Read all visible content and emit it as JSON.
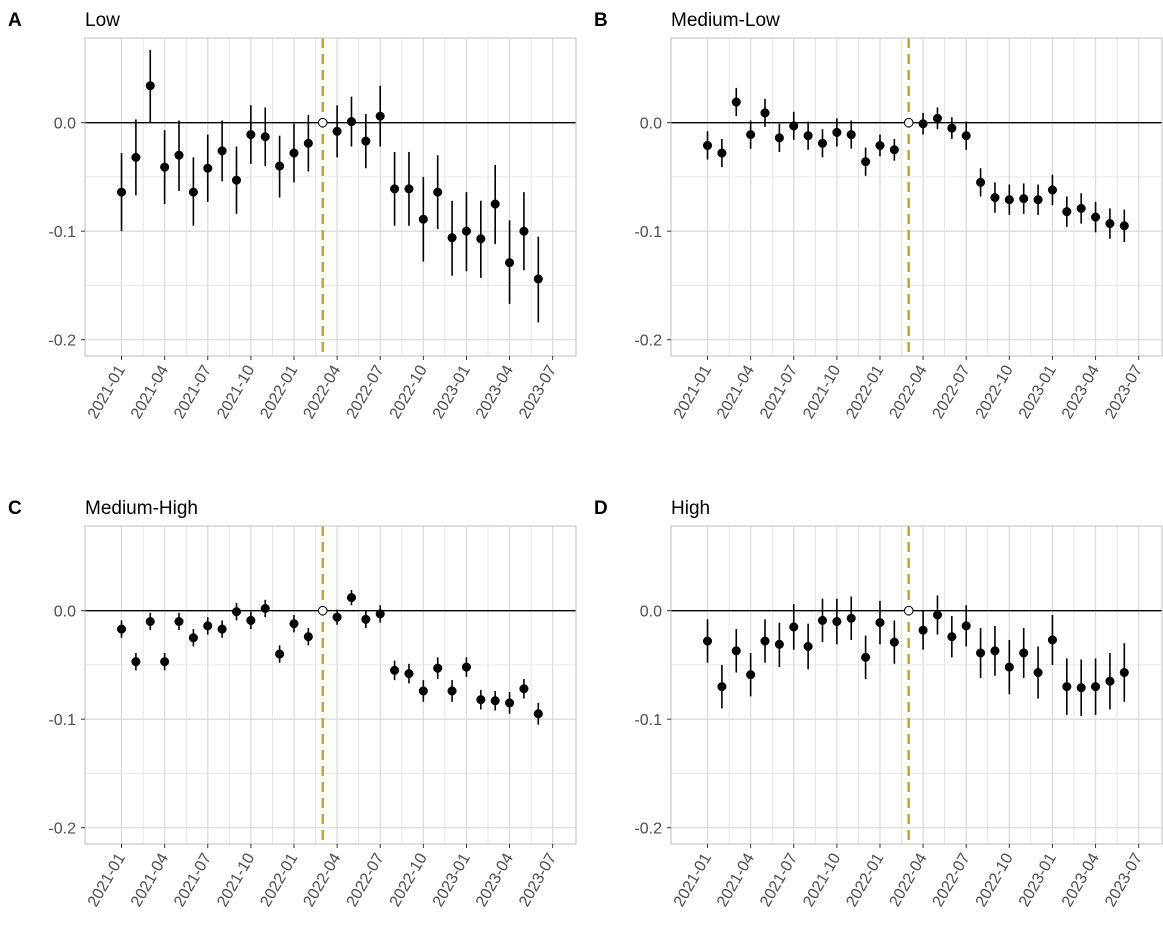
{
  "figure": {
    "event_month": "2022-03",
    "event_line_color": "#c9a82b",
    "point_color": "#000000",
    "grid_color": "#dcdcdc",
    "panel_border_color": "#bfbfbf"
  },
  "chart_data": [
    {
      "type": "scatter",
      "panel_letter": "A",
      "title": "Low",
      "ylim": [
        -0.215,
        0.078
      ],
      "yticks": [
        0.0,
        -0.1,
        -0.2
      ],
      "ytick_labels": [
        "0.0",
        "-0.1",
        "-0.2"
      ],
      "xticks": [
        "2021-01",
        "2021-04",
        "2021-07",
        "2021-10",
        "2022-01",
        "2022-04",
        "2022-07",
        "2022-10",
        "2023-01",
        "2023-04",
        "2023-07"
      ],
      "xlim": [
        "2020-10-15",
        "2023-08-20"
      ],
      "hline": 0.0,
      "grid": true,
      "x": [
        "2021-01",
        "2021-02",
        "2021-03",
        "2021-04",
        "2021-05",
        "2021-06",
        "2021-07",
        "2021-08",
        "2021-09",
        "2021-10",
        "2021-11",
        "2021-12",
        "2022-01",
        "2022-02",
        "2022-03",
        "2022-04",
        "2022-05",
        "2022-06",
        "2022-07",
        "2022-08",
        "2022-09",
        "2022-10",
        "2022-11",
        "2022-12",
        "2023-01",
        "2023-02",
        "2023-03",
        "2023-04",
        "2023-05",
        "2023-06"
      ],
      "y": [
        -0.064,
        -0.032,
        0.034,
        -0.041,
        -0.03,
        -0.064,
        -0.042,
        -0.026,
        -0.053,
        -0.011,
        -0.013,
        -0.04,
        -0.028,
        -0.019,
        0.0,
        -0.008,
        0.001,
        -0.017,
        0.006,
        -0.061,
        -0.061,
        -0.089,
        -0.064,
        -0.106,
        -0.1,
        -0.107,
        -0.075,
        -0.129,
        -0.1,
        -0.144
      ],
      "lower": [
        -0.1,
        -0.067,
        0.0,
        -0.075,
        -0.063,
        -0.095,
        -0.073,
        -0.054,
        -0.084,
        -0.038,
        -0.04,
        -0.069,
        -0.055,
        -0.045,
        0.0,
        -0.032,
        -0.022,
        -0.042,
        -0.022,
        -0.095,
        -0.095,
        -0.128,
        -0.098,
        -0.141,
        -0.137,
        -0.143,
        -0.112,
        -0.167,
        -0.136,
        -0.184
      ],
      "upper": [
        -0.028,
        0.003,
        0.067,
        -0.007,
        0.002,
        -0.032,
        -0.011,
        0.002,
        -0.022,
        0.016,
        0.014,
        -0.012,
        -0.001,
        0.007,
        0.0,
        0.016,
        0.024,
        0.008,
        0.034,
        -0.027,
        -0.027,
        -0.05,
        -0.03,
        -0.072,
        -0.064,
        -0.072,
        -0.039,
        -0.09,
        -0.064,
        -0.105
      ]
    },
    {
      "type": "scatter",
      "panel_letter": "B",
      "title": "Medium-Low",
      "ylim": [
        -0.215,
        0.078
      ],
      "yticks": [
        0.0,
        -0.1,
        -0.2
      ],
      "ytick_labels": [
        "0.0",
        "-0.1",
        "-0.2"
      ],
      "xticks": [
        "2021-01",
        "2021-04",
        "2021-07",
        "2021-10",
        "2022-01",
        "2022-04",
        "2022-07",
        "2022-10",
        "2023-01",
        "2023-04",
        "2023-07"
      ],
      "xlim": [
        "2020-10-15",
        "2023-08-20"
      ],
      "hline": 0.0,
      "grid": true,
      "x": [
        "2021-01",
        "2021-02",
        "2021-03",
        "2021-04",
        "2021-05",
        "2021-06",
        "2021-07",
        "2021-08",
        "2021-09",
        "2021-10",
        "2021-11",
        "2021-12",
        "2022-01",
        "2022-02",
        "2022-03",
        "2022-04",
        "2022-05",
        "2022-06",
        "2022-07",
        "2022-08",
        "2022-09",
        "2022-10",
        "2022-11",
        "2022-12",
        "2023-01",
        "2023-02",
        "2023-03",
        "2023-04",
        "2023-05",
        "2023-06"
      ],
      "y": [
        -0.021,
        -0.028,
        0.019,
        -0.011,
        0.009,
        -0.014,
        -0.003,
        -0.012,
        -0.019,
        -0.009,
        -0.011,
        -0.036,
        -0.021,
        -0.025,
        0.0,
        -0.001,
        0.004,
        -0.005,
        -0.012,
        -0.055,
        -0.069,
        -0.071,
        -0.07,
        -0.071,
        -0.062,
        -0.082,
        -0.079,
        -0.087,
        -0.093,
        -0.095
      ],
      "lower": [
        -0.034,
        -0.041,
        0.006,
        -0.024,
        -0.004,
        -0.027,
        -0.016,
        -0.025,
        -0.032,
        -0.022,
        -0.024,
        -0.049,
        -0.031,
        -0.035,
        0.0,
        -0.011,
        -0.006,
        -0.015,
        -0.025,
        -0.068,
        -0.083,
        -0.085,
        -0.084,
        -0.085,
        -0.076,
        -0.096,
        -0.093,
        -0.101,
        -0.107,
        -0.11
      ],
      "upper": [
        -0.008,
        -0.015,
        0.032,
        0.002,
        0.022,
        -0.001,
        0.01,
        0.001,
        -0.006,
        0.004,
        0.002,
        -0.023,
        -0.011,
        -0.015,
        0.0,
        0.009,
        0.014,
        0.005,
        0.001,
        -0.042,
        -0.055,
        -0.057,
        -0.056,
        -0.057,
        -0.048,
        -0.068,
        -0.065,
        -0.073,
        -0.079,
        -0.08
      ]
    },
    {
      "type": "scatter",
      "panel_letter": "C",
      "title": "Medium-High",
      "ylim": [
        -0.215,
        0.078
      ],
      "yticks": [
        0.0,
        -0.1,
        -0.2
      ],
      "ytick_labels": [
        "0.0",
        "-0.1",
        "-0.2"
      ],
      "xticks": [
        "2021-01",
        "2021-04",
        "2021-07",
        "2021-10",
        "2022-01",
        "2022-04",
        "2022-07",
        "2022-10",
        "2023-01",
        "2023-04",
        "2023-07"
      ],
      "xlim": [
        "2020-10-15",
        "2023-08-20"
      ],
      "hline": 0.0,
      "grid": true,
      "x": [
        "2021-01",
        "2021-02",
        "2021-03",
        "2021-04",
        "2021-05",
        "2021-06",
        "2021-07",
        "2021-08",
        "2021-09",
        "2021-10",
        "2021-11",
        "2021-12",
        "2022-01",
        "2022-02",
        "2022-03",
        "2022-04",
        "2022-05",
        "2022-06",
        "2022-07",
        "2022-08",
        "2022-09",
        "2022-10",
        "2022-11",
        "2022-12",
        "2023-01",
        "2023-02",
        "2023-03",
        "2023-04",
        "2023-05",
        "2023-06"
      ],
      "y": [
        -0.017,
        -0.047,
        -0.01,
        -0.047,
        -0.01,
        -0.025,
        -0.014,
        -0.017,
        -0.001,
        -0.009,
        0.002,
        -0.04,
        -0.012,
        -0.024,
        0.0,
        -0.006,
        0.012,
        -0.008,
        -0.003,
        -0.055,
        -0.058,
        -0.074,
        -0.053,
        -0.074,
        -0.052,
        -0.082,
        -0.083,
        -0.085,
        -0.072,
        -0.095
      ],
      "lower": [
        -0.025,
        -0.055,
        -0.018,
        -0.055,
        -0.018,
        -0.033,
        -0.022,
        -0.025,
        -0.009,
        -0.017,
        -0.006,
        -0.048,
        -0.02,
        -0.032,
        0.0,
        -0.013,
        0.005,
        -0.016,
        -0.011,
        -0.064,
        -0.067,
        -0.084,
        -0.063,
        -0.084,
        -0.061,
        -0.091,
        -0.092,
        -0.095,
        -0.081,
        -0.105
      ],
      "upper": [
        -0.009,
        -0.039,
        -0.002,
        -0.039,
        -0.002,
        -0.017,
        -0.006,
        -0.009,
        0.007,
        -0.001,
        0.01,
        -0.032,
        -0.004,
        -0.016,
        0.0,
        0.001,
        0.019,
        0.0,
        0.005,
        -0.046,
        -0.049,
        -0.064,
        -0.043,
        -0.064,
        -0.043,
        -0.073,
        -0.074,
        -0.075,
        -0.063,
        -0.085
      ]
    },
    {
      "type": "scatter",
      "panel_letter": "D",
      "title": "High",
      "ylim": [
        -0.215,
        0.078
      ],
      "yticks": [
        0.0,
        -0.1,
        -0.2
      ],
      "ytick_labels": [
        "0.0",
        "-0.1",
        "-0.2"
      ],
      "xticks": [
        "2021-01",
        "2021-04",
        "2021-07",
        "2021-10",
        "2022-01",
        "2022-04",
        "2022-07",
        "2022-10",
        "2023-01",
        "2023-04",
        "2023-07"
      ],
      "xlim": [
        "2020-10-15",
        "2023-08-20"
      ],
      "hline": 0.0,
      "grid": true,
      "x": [
        "2021-01",
        "2021-02",
        "2021-03",
        "2021-04",
        "2021-05",
        "2021-06",
        "2021-07",
        "2021-08",
        "2021-09",
        "2021-10",
        "2021-11",
        "2021-12",
        "2022-01",
        "2022-02",
        "2022-03",
        "2022-04",
        "2022-05",
        "2022-06",
        "2022-07",
        "2022-08",
        "2022-09",
        "2022-10",
        "2022-11",
        "2022-12",
        "2023-01",
        "2023-02",
        "2023-03",
        "2023-04",
        "2023-05",
        "2023-06"
      ],
      "y": [
        -0.028,
        -0.07,
        -0.037,
        -0.059,
        -0.028,
        -0.031,
        -0.015,
        -0.033,
        -0.009,
        -0.01,
        -0.007,
        -0.043,
        -0.011,
        -0.029,
        0.0,
        -0.018,
        -0.004,
        -0.024,
        -0.014,
        -0.039,
        -0.037,
        -0.052,
        -0.039,
        -0.057,
        -0.027,
        -0.07,
        -0.071,
        -0.07,
        -0.065,
        -0.057
      ],
      "lower": [
        -0.048,
        -0.09,
        -0.057,
        -0.079,
        -0.048,
        -0.052,
        -0.036,
        -0.054,
        -0.029,
        -0.031,
        -0.027,
        -0.063,
        -0.031,
        -0.049,
        0.0,
        -0.036,
        -0.022,
        -0.043,
        -0.033,
        -0.062,
        -0.06,
        -0.077,
        -0.062,
        -0.081,
        -0.05,
        -0.096,
        -0.097,
        -0.096,
        -0.091,
        -0.084
      ],
      "upper": [
        -0.008,
        -0.05,
        -0.017,
        -0.039,
        -0.008,
        -0.011,
        0.006,
        -0.012,
        0.011,
        0.011,
        0.013,
        -0.023,
        0.009,
        -0.009,
        0.0,
        0.0,
        0.014,
        -0.005,
        0.005,
        -0.016,
        -0.014,
        -0.027,
        -0.016,
        -0.033,
        -0.004,
        -0.044,
        -0.045,
        -0.044,
        -0.039,
        -0.03
      ]
    }
  ]
}
